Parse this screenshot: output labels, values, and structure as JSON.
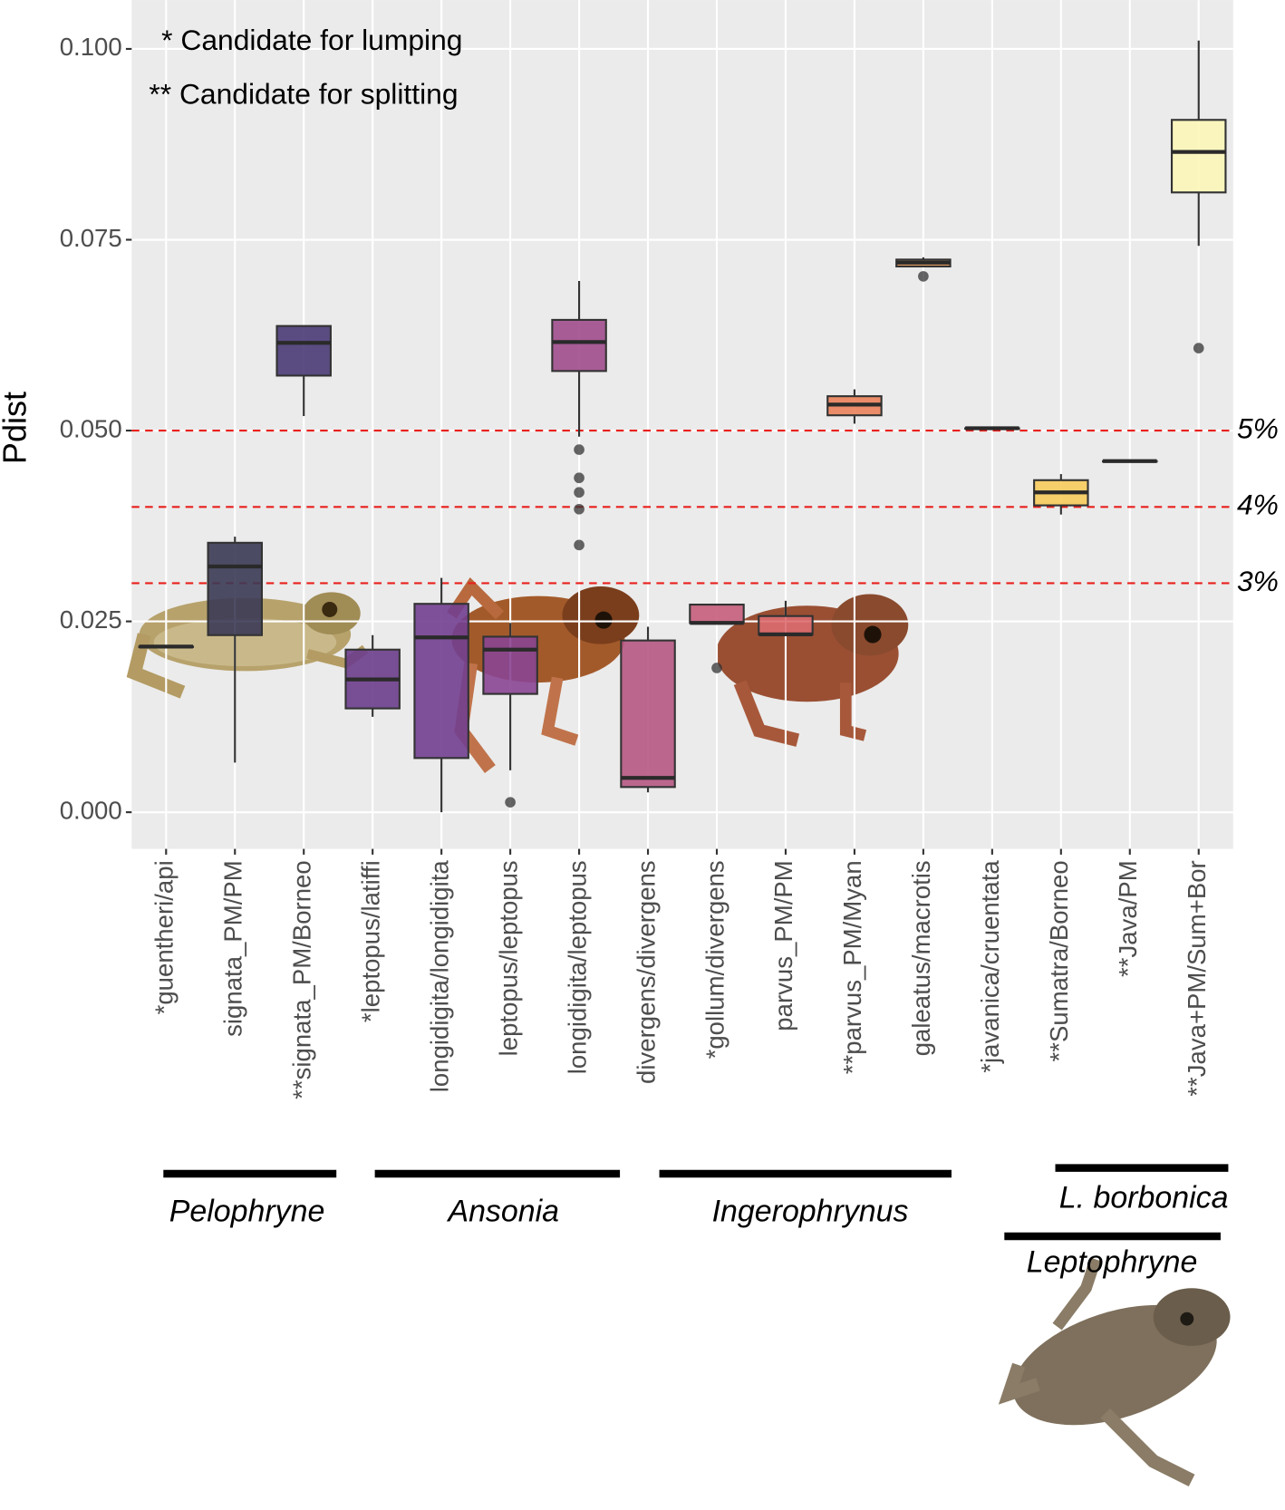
{
  "chart_data": {
    "type": "box",
    "y_label": "Pdist",
    "annotations": [
      "* Candidate for lumping",
      "** Candidate for splitting"
    ],
    "categories": [
      "*guentheri/api",
      "signata_PM/PM",
      "**signata_PM/Borneo",
      "*leptopus/latiffi",
      "longidigita/longidigita",
      "leptopus/leptopus",
      "longidigita/leptopus",
      "divergens/divergens",
      "*gollum/divergens",
      "parvus_PM/PM",
      "**parvus_PM/Myan",
      "galeatus/macrotis",
      "*javanica/cruentata",
      "**Sumatra/Borneo",
      "**Java/PM",
      "**Java+PM/Sum+Bor"
    ],
    "min": [
      0.0217,
      0.0065,
      0.0519,
      0.0125,
      0.0,
      0.0055,
      0.0492,
      0.0026,
      0.0248,
      0.0233,
      0.0509,
      0.0715,
      0.0503,
      0.039,
      0.046,
      0.0742
    ],
    "q1": [
      0.0217,
      0.0232,
      0.0572,
      0.0136,
      0.0071,
      0.0155,
      0.0578,
      0.0033,
      0.0248,
      0.0233,
      0.052,
      0.0715,
      0.0503,
      0.0402,
      0.046,
      0.0812
    ],
    "median": [
      0.0217,
      0.0322,
      0.0615,
      0.0174,
      0.0229,
      0.0213,
      0.0616,
      0.0045,
      0.0248,
      0.0233,
      0.0534,
      0.072,
      0.0503,
      0.0419,
      0.046,
      0.0865
    ],
    "q3": [
      0.0217,
      0.0353,
      0.0637,
      0.0213,
      0.0273,
      0.023,
      0.0645,
      0.0225,
      0.0272,
      0.0257,
      0.0545,
      0.0724,
      0.0503,
      0.0435,
      0.046,
      0.0907
    ],
    "max": [
      0.0217,
      0.0361,
      0.0637,
      0.0232,
      0.0307,
      0.0248,
      0.0696,
      0.0243,
      0.0272,
      0.0277,
      0.0554,
      0.0727,
      0.0503,
      0.0443,
      0.046,
      0.1011
    ],
    "outliers": [
      [],
      [],
      [],
      [],
      [],
      [
        0.0013
      ],
      [
        0.0475,
        0.0438,
        0.0419,
        0.0397,
        0.035
      ],
      [],
      [
        0.0189
      ],
      [],
      [],
      [
        0.0702
      ],
      [],
      [],
      [],
      [
        0.0608
      ]
    ],
    "colors": [
      "#2a2a3e",
      "#3b3a55",
      "#4a3a75",
      "#6b3d8c",
      "#723f90",
      "#8a4592",
      "#a04d8c",
      "#b65883",
      "#c65e7c",
      "#db6b70",
      "#ea825b",
      "#f09a55",
      "#f5b756",
      "#f7cb5c",
      "#f8de72",
      "#fbf6b8"
    ],
    "ylim": [
      -0.0048,
      0.1064
    ],
    "yticks": [
      {
        "value": 0,
        "label": "0.000"
      },
      0.025,
      {
        "value": 0.05,
        "label": "0.050"
      },
      0.075,
      {
        "value": 0.1,
        "label": "0.100"
      }
    ],
    "reference_lines": [
      {
        "value": 0.05,
        "label": "5%"
      },
      {
        "value": 0.04,
        "label": "4%"
      },
      {
        "value": 0.03,
        "label": "3%"
      }
    ],
    "grid": true,
    "groups": [
      "Pelophryne",
      "Ansonia",
      "Ingerophrynus",
      "L. borbonica",
      "Leptophryne"
    ]
  }
}
